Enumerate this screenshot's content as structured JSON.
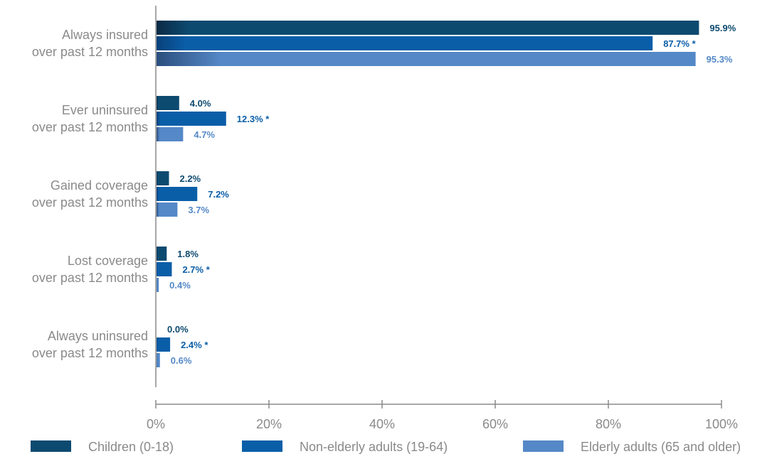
{
  "chart_data": {
    "type": "bar",
    "orientation": "horizontal",
    "categories": [
      [
        "Always insured",
        "over past 12 months"
      ],
      [
        "Ever uninsured",
        "over past 12 months"
      ],
      [
        "Gained coverage",
        "over past 12 months"
      ],
      [
        "Lost coverage",
        "over past 12 months"
      ],
      [
        "Always uninsured",
        "over past 12 months"
      ]
    ],
    "series": [
      {
        "name": "Children (0-18)",
        "color": "#0d4a70",
        "values": [
          95.9,
          4.0,
          2.2,
          1.8,
          0.0
        ],
        "labels": [
          "95.9%",
          "4.0%",
          "2.2%",
          "1.8%",
          "0.0%"
        ]
      },
      {
        "name": "Non-elderly adults (19-64)",
        "color": "#0a5ea8",
        "values": [
          87.7,
          12.3,
          7.2,
          2.7,
          2.4
        ],
        "labels": [
          "87.7% *",
          "12.3% *",
          "7.2%",
          "2.7% *",
          "2.4% *"
        ]
      },
      {
        "name": "Elderly adults (65 and older)",
        "color": "#5488c7",
        "values": [
          95.3,
          4.7,
          3.7,
          0.4,
          0.6
        ],
        "labels": [
          "95.3%",
          "4.7%",
          "3.7%",
          "0.4%",
          "0.6%"
        ]
      }
    ],
    "xlim": [
      0,
      100
    ],
    "xticks": [
      "0%",
      "20%",
      "40%",
      "60%",
      "80%",
      "100%"
    ],
    "grid": false,
    "legend_position": "bottom"
  }
}
